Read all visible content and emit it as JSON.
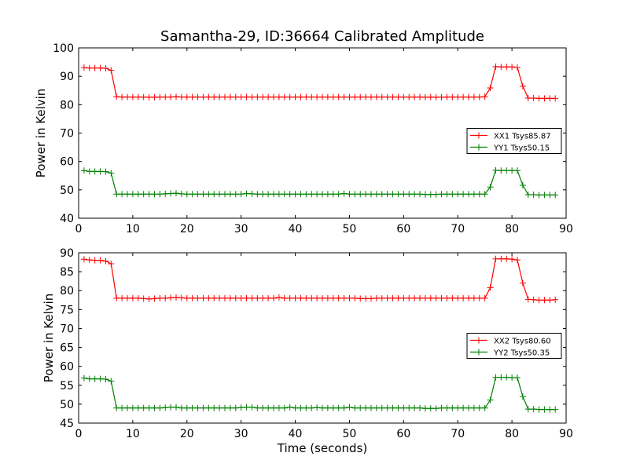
{
  "chart_data": {
    "type": "line",
    "title": "Samantha-29, ID:36664 Calibrated Amplitude",
    "xlabel": "Time (seconds)",
    "x_ticks": [
      "0",
      "10",
      "20",
      "30",
      "40",
      "50",
      "60",
      "70",
      "80",
      "90"
    ],
    "colors": {
      "XX": "#ff0000",
      "YY": "#008000"
    },
    "panels": [
      {
        "ylabel": "Power in Kelvin",
        "xlim": [
          0,
          90
        ],
        "ylim": [
          40,
          100
        ],
        "y_ticks": [
          "40",
          "50",
          "60",
          "70",
          "80",
          "90",
          "100"
        ],
        "legend_location": "center-right",
        "series": [
          {
            "name": "XX1 Tsys85.87",
            "color": "#ff0000",
            "x": [
              1,
              2,
              3,
              4,
              5,
              6,
              7,
              8,
              9,
              10,
              11,
              12,
              13,
              14,
              15,
              16,
              17,
              18,
              19,
              20,
              21,
              22,
              23,
              24,
              25,
              26,
              27,
              28,
              29,
              30,
              31,
              32,
              33,
              34,
              35,
              36,
              37,
              38,
              39,
              40,
              41,
              42,
              43,
              44,
              45,
              46,
              47,
              48,
              49,
              50,
              51,
              52,
              53,
              54,
              55,
              56,
              57,
              58,
              59,
              60,
              61,
              62,
              63,
              64,
              65,
              66,
              67,
              68,
              69,
              70,
              71,
              72,
              73,
              74,
              75,
              76,
              77,
              78,
              79,
              80,
              81,
              82,
              83,
              84,
              85,
              86,
              87,
              88
            ],
            "y": [
              93.1,
              92.9,
              92.9,
              92.9,
              92.8,
              92.1,
              82.8,
              82.7,
              82.7,
              82.7,
              82.7,
              82.7,
              82.6,
              82.6,
              82.7,
              82.7,
              82.7,
              82.8,
              82.7,
              82.7,
              82.7,
              82.7,
              82.7,
              82.7,
              82.7,
              82.7,
              82.7,
              82.7,
              82.7,
              82.7,
              82.7,
              82.7,
              82.7,
              82.7,
              82.7,
              82.7,
              82.7,
              82.7,
              82.7,
              82.7,
              82.7,
              82.7,
              82.7,
              82.7,
              82.7,
              82.7,
              82.7,
              82.7,
              82.7,
              82.7,
              82.7,
              82.7,
              82.7,
              82.7,
              82.7,
              82.7,
              82.7,
              82.7,
              82.7,
              82.7,
              82.7,
              82.7,
              82.7,
              82.6,
              82.7,
              82.6,
              82.6,
              82.7,
              82.7,
              82.7,
              82.7,
              82.7,
              82.7,
              82.7,
              82.8,
              85.9,
              93.4,
              93.3,
              93.3,
              93.3,
              93.1,
              86.5,
              82.3,
              82.3,
              82.2,
              82.2,
              82.2,
              82.2
            ]
          },
          {
            "name": "YY1 Tsys50.15",
            "color": "#008000",
            "x": [
              1,
              2,
              3,
              4,
              5,
              6,
              7,
              8,
              9,
              10,
              11,
              12,
              13,
              14,
              15,
              16,
              17,
              18,
              19,
              20,
              21,
              22,
              23,
              24,
              25,
              26,
              27,
              28,
              29,
              30,
              31,
              32,
              33,
              34,
              35,
              36,
              37,
              38,
              39,
              40,
              41,
              42,
              43,
              44,
              45,
              46,
              47,
              48,
              49,
              50,
              51,
              52,
              53,
              54,
              55,
              56,
              57,
              58,
              59,
              60,
              61,
              62,
              63,
              64,
              65,
              66,
              67,
              68,
              69,
              70,
              71,
              72,
              73,
              74,
              75,
              76,
              77,
              78,
              79,
              80,
              81,
              82,
              83,
              84,
              85,
              86,
              87,
              88
            ],
            "y": [
              56.8,
              56.5,
              56.5,
              56.5,
              56.4,
              55.9,
              48.5,
              48.5,
              48.5,
              48.5,
              48.5,
              48.5,
              48.5,
              48.5,
              48.5,
              48.6,
              48.7,
              48.8,
              48.6,
              48.5,
              48.5,
              48.5,
              48.5,
              48.5,
              48.5,
              48.5,
              48.5,
              48.5,
              48.5,
              48.5,
              48.7,
              48.6,
              48.5,
              48.5,
              48.5,
              48.5,
              48.5,
              48.5,
              48.5,
              48.5,
              48.5,
              48.5,
              48.5,
              48.5,
              48.5,
              48.5,
              48.5,
              48.5,
              48.7,
              48.5,
              48.5,
              48.5,
              48.5,
              48.5,
              48.5,
              48.5,
              48.5,
              48.5,
              48.5,
              48.5,
              48.5,
              48.5,
              48.5,
              48.4,
              48.4,
              48.4,
              48.5,
              48.5,
              48.5,
              48.5,
              48.5,
              48.5,
              48.5,
              48.5,
              48.5,
              51.0,
              56.9,
              56.8,
              56.8,
              56.8,
              56.8,
              51.6,
              48.3,
              48.3,
              48.2,
              48.2,
              48.2,
              48.2
            ]
          }
        ]
      },
      {
        "ylabel": "Power in Kelvin",
        "xlim": [
          0,
          90
        ],
        "ylim": [
          45,
          90
        ],
        "y_ticks": [
          "45",
          "50",
          "55",
          "60",
          "65",
          "70",
          "75",
          "80",
          "85",
          "90"
        ],
        "legend_location": "center-right",
        "series": [
          {
            "name": "XX2 Tsys80.60",
            "color": "#ff0000",
            "x": [
              1,
              2,
              3,
              4,
              5,
              6,
              7,
              8,
              9,
              10,
              11,
              12,
              13,
              14,
              15,
              16,
              17,
              18,
              19,
              20,
              21,
              22,
              23,
              24,
              25,
              26,
              27,
              28,
              29,
              30,
              31,
              32,
              33,
              34,
              35,
              36,
              37,
              38,
              39,
              40,
              41,
              42,
              43,
              44,
              45,
              46,
              47,
              48,
              49,
              50,
              51,
              52,
              53,
              54,
              55,
              56,
              57,
              58,
              59,
              60,
              61,
              62,
              63,
              64,
              65,
              66,
              67,
              68,
              69,
              70,
              71,
              72,
              73,
              74,
              75,
              76,
              77,
              78,
              79,
              80,
              81,
              82,
              83,
              84,
              85,
              86,
              87,
              88
            ],
            "y": [
              88.3,
              88.1,
              88.0,
              88.0,
              87.8,
              87.1,
              78.0,
              78.0,
              78.0,
              78.0,
              78.0,
              77.9,
              77.8,
              77.9,
              78.0,
              78.0,
              78.1,
              78.2,
              78.1,
              78.0,
              78.0,
              78.0,
              78.0,
              78.0,
              78.0,
              78.0,
              78.0,
              78.0,
              78.0,
              78.0,
              78.0,
              78.0,
              78.0,
              78.0,
              78.0,
              78.0,
              78.2,
              78.0,
              78.0,
              78.0,
              78.0,
              78.0,
              78.0,
              78.0,
              78.0,
              78.0,
              78.0,
              78.0,
              78.0,
              78.0,
              78.0,
              77.9,
              77.9,
              77.9,
              78.0,
              78.0,
              78.0,
              78.0,
              78.0,
              78.0,
              78.0,
              78.0,
              78.0,
              78.0,
              78.0,
              78.0,
              78.0,
              78.0,
              78.0,
              78.0,
              78.0,
              78.0,
              78.0,
              78.0,
              78.0,
              80.8,
              88.4,
              88.4,
              88.4,
              88.3,
              88.1,
              82.0,
              77.7,
              77.6,
              77.5,
              77.5,
              77.5,
              77.6
            ]
          },
          {
            "name": "YY2 Tsys50.35",
            "color": "#008000",
            "x": [
              1,
              2,
              3,
              4,
              5,
              6,
              7,
              8,
              9,
              10,
              11,
              12,
              13,
              14,
              15,
              16,
              17,
              18,
              19,
              20,
              21,
              22,
              23,
              24,
              25,
              26,
              27,
              28,
              29,
              30,
              31,
              32,
              33,
              34,
              35,
              36,
              37,
              38,
              39,
              40,
              41,
              42,
              43,
              44,
              45,
              46,
              47,
              48,
              49,
              50,
              51,
              52,
              53,
              54,
              55,
              56,
              57,
              58,
              59,
              60,
              61,
              62,
              63,
              64,
              65,
              66,
              67,
              68,
              69,
              70,
              71,
              72,
              73,
              74,
              75,
              76,
              77,
              78,
              79,
              80,
              81,
              82,
              83,
              84,
              85,
              86,
              87,
              88
            ],
            "y": [
              56.9,
              56.7,
              56.7,
              56.7,
              56.6,
              56.1,
              49.0,
              49.0,
              49.0,
              49.0,
              49.0,
              49.0,
              49.0,
              49.0,
              49.0,
              49.1,
              49.2,
              49.2,
              49.0,
              49.0,
              49.0,
              49.0,
              49.0,
              49.0,
              49.0,
              49.0,
              49.0,
              49.0,
              49.0,
              49.1,
              49.2,
              49.2,
              49.0,
              49.0,
              49.0,
              49.0,
              49.0,
              49.0,
              49.2,
              49.0,
              49.0,
              49.0,
              49.0,
              49.1,
              49.0,
              49.0,
              49.0,
              49.0,
              49.0,
              49.2,
              49.0,
              49.0,
              49.0,
              49.0,
              49.0,
              49.0,
              49.0,
              49.0,
              49.0,
              49.0,
              49.0,
              49.0,
              49.0,
              48.9,
              48.9,
              48.9,
              49.0,
              49.0,
              49.0,
              49.0,
              49.0,
              49.0,
              49.0,
              49.0,
              49.0,
              51.1,
              57.1,
              57.1,
              57.1,
              57.0,
              57.0,
              52.0,
              48.7,
              48.7,
              48.6,
              48.6,
              48.6,
              48.6
            ]
          }
        ]
      }
    ]
  }
}
